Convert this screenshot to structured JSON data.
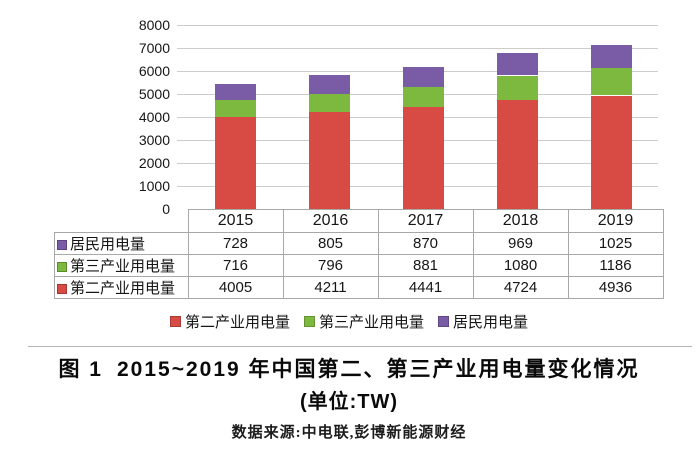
{
  "figure": {
    "caption_prefix": "图 1",
    "caption_title": "2015~2019 年中国第二、第三产业用电量变化情况",
    "caption_unit": "(单位:TW)",
    "source": "数据来源:中电联,彭博新能源财经"
  },
  "colors": {
    "secondary_industry": "#d84a44",
    "tertiary_industry": "#7db83f",
    "residential": "#7a5ba5",
    "gridline": "#cccccc",
    "table_border": "#a8a8a8"
  },
  "chart_data": {
    "type": "bar",
    "stacked": true,
    "categories": [
      "2015",
      "2016",
      "2017",
      "2018",
      "2019"
    ],
    "series": [
      {
        "name": "第二产业用电量",
        "color_key": "secondary_industry",
        "values": [
          4005,
          4211,
          4441,
          4724,
          4936
        ]
      },
      {
        "name": "第三产业用电量",
        "color_key": "tertiary_industry",
        "values": [
          716,
          796,
          881,
          1080,
          1186
        ]
      },
      {
        "name": "居民用电量",
        "color_key": "residential",
        "values": [
          728,
          805,
          870,
          969,
          1025
        ]
      }
    ],
    "ylim": [
      0,
      8000
    ],
    "yticks": [
      0,
      1000,
      2000,
      3000,
      4000,
      5000,
      6000,
      7000,
      8000
    ],
    "xlabel": "",
    "ylabel": "",
    "grid": true,
    "legend": [
      "第二产业用电量",
      "第三产业用电量",
      "居民用电量"
    ],
    "legend_color_keys": [
      "secondary_industry",
      "tertiary_industry",
      "residential"
    ],
    "legend_position": "bottom"
  },
  "table": {
    "header": [
      "2015",
      "2016",
      "2017",
      "2018",
      "2019"
    ],
    "rows": [
      {
        "label": "居民用电量",
        "color_key": "residential",
        "values": [
          728,
          805,
          870,
          969,
          1025
        ]
      },
      {
        "label": "第三产业用电量",
        "color_key": "tertiary_industry",
        "values": [
          716,
          796,
          881,
          1080,
          1186
        ]
      },
      {
        "label": "第二产业用电量",
        "color_key": "secondary_industry",
        "values": [
          4005,
          4211,
          4441,
          4724,
          4936
        ]
      }
    ]
  }
}
